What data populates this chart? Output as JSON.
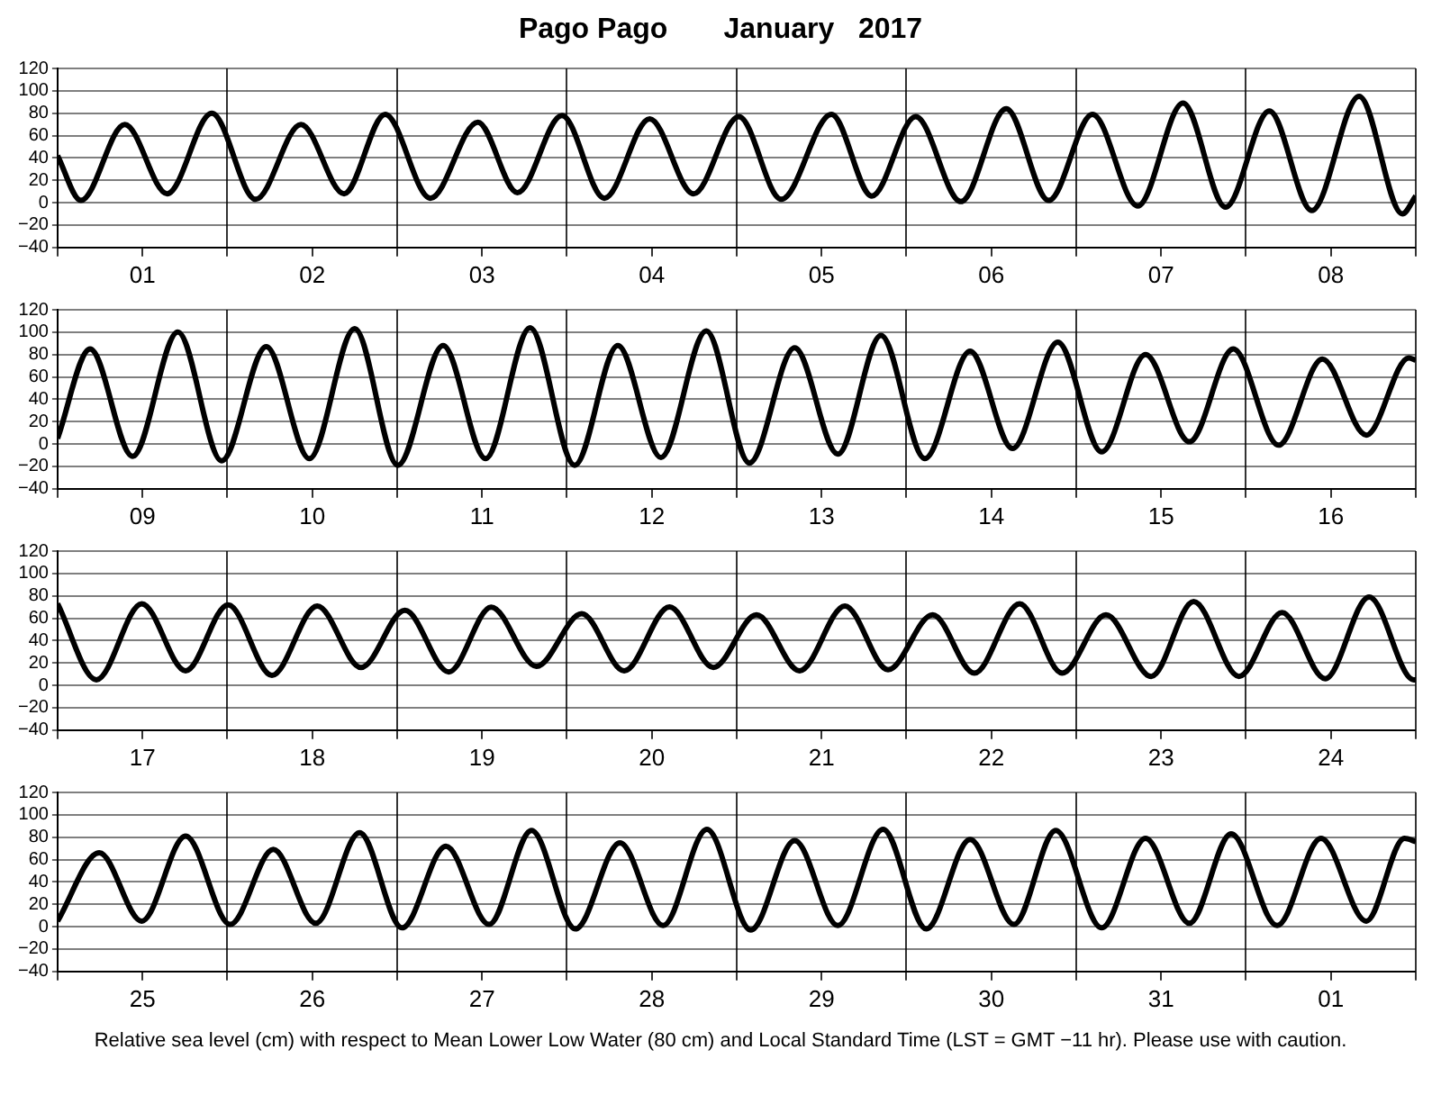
{
  "chart_data": [
    {
      "type": "line",
      "title": "Pago Pago       January   2017",
      "color": "#000000",
      "marker": "none",
      "grid": true,
      "xlim": [
        "2017-01-01T00:00",
        "2017-01-09T00:00"
      ],
      "ylim": [
        -40,
        120
      ],
      "yticks": [
        -40,
        -20,
        0,
        20,
        40,
        60,
        80,
        100,
        120
      ],
      "xticks": [
        {
          "value": "2017-01-01T00:00",
          "label": null
        },
        {
          "value": "2017-01-01T12:00",
          "label": "01"
        },
        {
          "value": "2017-01-02T00:00",
          "label": null
        },
        {
          "value": "2017-01-02T12:00",
          "label": "02"
        },
        {
          "value": "2017-01-03T00:00",
          "label": null
        },
        {
          "value": "2017-01-03T12:00",
          "label": "03"
        },
        {
          "value": "2017-01-04T00:00",
          "label": null
        },
        {
          "value": "2017-01-04T12:00",
          "label": "04"
        },
        {
          "value": "2017-01-05T00:00",
          "label": null
        },
        {
          "value": "2017-01-05T12:00",
          "label": "05"
        },
        {
          "value": "2017-01-06T00:00",
          "label": null
        },
        {
          "value": "2017-01-06T12:00",
          "label": "06"
        },
        {
          "value": "2017-01-07T00:00",
          "label": null
        },
        {
          "value": "2017-01-07T12:00",
          "label": "07"
        },
        {
          "value": "2017-01-08T00:00",
          "label": null
        },
        {
          "value": "2017-01-08T12:00",
          "label": "08"
        },
        {
          "value": "2017-01-09T00:00",
          "label": null
        }
      ],
      "x": [
        "2017-01-01T00:00",
        "2017-01-01T03:18",
        "2017-01-01T09:30",
        "2017-01-01T15:30",
        "2017-01-01T21:48",
        "2017-01-02T04:00",
        "2017-01-02T10:24",
        "2017-01-02T16:30",
        "2017-01-02T22:18",
        "2017-01-03T04:42",
        "2017-01-03T11:24",
        "2017-01-03T17:00",
        "2017-01-03T23:18",
        "2017-01-04T05:18",
        "2017-01-04T11:42",
        "2017-01-04T17:54",
        "2017-01-05T00:18",
        "2017-01-05T06:18",
        "2017-01-05T13:24",
        "2017-01-05T19:06",
        "2017-01-06T01:18",
        "2017-01-06T07:42",
        "2017-01-06T14:06",
        "2017-01-06T20:06",
        "2017-01-07T02:18",
        "2017-01-07T08:42",
        "2017-01-07T15:06",
        "2017-01-07T21:06",
        "2017-01-08T03:18",
        "2017-01-08T09:18",
        "2017-01-08T16:00",
        "2017-01-08T22:06",
        "2017-01-09T00:00"
      ],
      "values": [
        42,
        2,
        70,
        8,
        80,
        3,
        70,
        8,
        79,
        4,
        72,
        9,
        78,
        4,
        75,
        8,
        77,
        3,
        79,
        6,
        77,
        1,
        84,
        2,
        79,
        -3,
        89,
        -4,
        82,
        -7,
        95,
        -10,
        6
      ]
    },
    {
      "type": "line",
      "color": "#000000",
      "marker": "none",
      "grid": true,
      "xlim": [
        "2017-01-09T00:00",
        "2017-01-17T00:00"
      ],
      "ylim": [
        -40,
        120
      ],
      "yticks": [
        -40,
        -20,
        0,
        20,
        40,
        60,
        80,
        100,
        120
      ],
      "xticks": [
        {
          "value": "2017-01-09T00:00",
          "label": null
        },
        {
          "value": "2017-01-09T12:00",
          "label": "09"
        },
        {
          "value": "2017-01-10T00:00",
          "label": null
        },
        {
          "value": "2017-01-10T12:00",
          "label": "10"
        },
        {
          "value": "2017-01-11T00:00",
          "label": null
        },
        {
          "value": "2017-01-11T12:00",
          "label": "11"
        },
        {
          "value": "2017-01-12T00:00",
          "label": null
        },
        {
          "value": "2017-01-12T12:00",
          "label": "12"
        },
        {
          "value": "2017-01-13T00:00",
          "label": null
        },
        {
          "value": "2017-01-13T12:00",
          "label": "13"
        },
        {
          "value": "2017-01-14T00:00",
          "label": null
        },
        {
          "value": "2017-01-14T12:00",
          "label": "14"
        },
        {
          "value": "2017-01-15T00:00",
          "label": null
        },
        {
          "value": "2017-01-15T12:00",
          "label": "15"
        },
        {
          "value": "2017-01-16T00:00",
          "label": null
        },
        {
          "value": "2017-01-16T12:00",
          "label": "16"
        },
        {
          "value": "2017-01-17T00:00",
          "label": null
        }
      ],
      "x": [
        "2017-01-09T00:00",
        "2017-01-09T04:36",
        "2017-01-09T10:36",
        "2017-01-09T17:00",
        "2017-01-09T23:12",
        "2017-01-10T05:30",
        "2017-01-10T11:36",
        "2017-01-10T18:00",
        "2017-01-11T00:06",
        "2017-01-11T06:30",
        "2017-01-11T12:30",
        "2017-01-11T18:48",
        "2017-01-12T01:06",
        "2017-01-12T07:12",
        "2017-01-12T13:18",
        "2017-01-12T19:42",
        "2017-01-13T01:48",
        "2017-01-13T08:12",
        "2017-01-13T14:18",
        "2017-01-13T20:24",
        "2017-01-14T02:36",
        "2017-01-14T09:00",
        "2017-01-14T15:00",
        "2017-01-14T21:24",
        "2017-01-15T03:36",
        "2017-01-15T09:48",
        "2017-01-15T16:00",
        "2017-01-15T22:12",
        "2017-01-16T04:36",
        "2017-01-16T10:48",
        "2017-01-16T17:00",
        "2017-01-16T23:00",
        "2017-01-17T00:00"
      ],
      "values": [
        5,
        85,
        -11,
        100,
        -15,
        87,
        -13,
        103,
        -19,
        88,
        -13,
        104,
        -19,
        88,
        -12,
        101,
        -17,
        86,
        -9,
        97,
        -13,
        83,
        -4,
        91,
        -7,
        80,
        2,
        85,
        -1,
        76,
        8,
        77,
        75
      ]
    },
    {
      "type": "line",
      "color": "#000000",
      "marker": "none",
      "grid": true,
      "xlim": [
        "2017-01-17T00:00",
        "2017-01-25T00:00"
      ],
      "ylim": [
        -40,
        120
      ],
      "yticks": [
        -40,
        -20,
        0,
        20,
        40,
        60,
        80,
        100,
        120
      ],
      "xticks": [
        {
          "value": "2017-01-17T00:00",
          "label": null
        },
        {
          "value": "2017-01-17T12:00",
          "label": "17"
        },
        {
          "value": "2017-01-18T00:00",
          "label": null
        },
        {
          "value": "2017-01-18T12:00",
          "label": "18"
        },
        {
          "value": "2017-01-19T00:00",
          "label": null
        },
        {
          "value": "2017-01-19T12:00",
          "label": "19"
        },
        {
          "value": "2017-01-20T00:00",
          "label": null
        },
        {
          "value": "2017-01-20T12:00",
          "label": "20"
        },
        {
          "value": "2017-01-21T00:00",
          "label": null
        },
        {
          "value": "2017-01-21T12:00",
          "label": "21"
        },
        {
          "value": "2017-01-22T00:00",
          "label": null
        },
        {
          "value": "2017-01-22T12:00",
          "label": "22"
        },
        {
          "value": "2017-01-23T00:00",
          "label": null
        },
        {
          "value": "2017-01-23T12:00",
          "label": "23"
        },
        {
          "value": "2017-01-24T00:00",
          "label": null
        },
        {
          "value": "2017-01-24T12:00",
          "label": "24"
        },
        {
          "value": "2017-01-25T00:00",
          "label": null
        }
      ],
      "x": [
        "2017-01-17T00:00",
        "2017-01-17T05:30",
        "2017-01-17T11:54",
        "2017-01-17T18:06",
        "2017-01-18T00:06",
        "2017-01-18T06:18",
        "2017-01-18T12:42",
        "2017-01-18T18:54",
        "2017-01-19T01:06",
        "2017-01-19T07:18",
        "2017-01-19T13:18",
        "2017-01-19T19:42",
        "2017-01-20T02:06",
        "2017-01-20T08:06",
        "2017-01-20T14:30",
        "2017-01-20T20:42",
        "2017-01-21T02:48",
        "2017-01-21T08:54",
        "2017-01-21T15:18",
        "2017-01-21T21:24",
        "2017-01-22T03:42",
        "2017-01-22T09:36",
        "2017-01-22T16:00",
        "2017-01-22T22:00",
        "2017-01-23T04:12",
        "2017-01-23T10:36",
        "2017-01-23T16:36",
        "2017-01-23T23:00",
        "2017-01-24T05:06",
        "2017-01-24T11:12",
        "2017-01-24T17:24",
        "2017-01-24T23:42",
        "2017-01-25T00:00"
      ],
      "values": [
        73,
        5,
        73,
        13,
        72,
        9,
        71,
        16,
        67,
        12,
        70,
        17,
        64,
        13,
        70,
        16,
        63,
        13,
        71,
        14,
        63,
        11,
        73,
        11,
        63,
        8,
        75,
        8,
        65,
        6,
        79,
        5,
        5
      ]
    },
    {
      "type": "line",
      "color": "#000000",
      "marker": "none",
      "grid": true,
      "xlim": [
        "2017-01-25T00:00",
        "2017-02-02T00:00"
      ],
      "ylim": [
        -40,
        120
      ],
      "yticks": [
        -40,
        -20,
        0,
        20,
        40,
        60,
        80,
        100,
        120
      ],
      "xticks": [
        {
          "value": "2017-01-25T00:00",
          "label": null
        },
        {
          "value": "2017-01-25T12:00",
          "label": "25"
        },
        {
          "value": "2017-01-26T00:00",
          "label": null
        },
        {
          "value": "2017-01-26T12:00",
          "label": "26"
        },
        {
          "value": "2017-01-27T00:00",
          "label": null
        },
        {
          "value": "2017-01-27T12:00",
          "label": "27"
        },
        {
          "value": "2017-01-28T00:00",
          "label": null
        },
        {
          "value": "2017-01-28T12:00",
          "label": "28"
        },
        {
          "value": "2017-01-29T00:00",
          "label": null
        },
        {
          "value": "2017-01-29T12:00",
          "label": "29"
        },
        {
          "value": "2017-01-30T00:00",
          "label": null
        },
        {
          "value": "2017-01-30T12:00",
          "label": "30"
        },
        {
          "value": "2017-01-31T00:00",
          "label": null
        },
        {
          "value": "2017-01-31T12:00",
          "label": "31"
        },
        {
          "value": "2017-02-01T00:00",
          "label": null
        },
        {
          "value": "2017-02-01T12:00",
          "label": "01"
        },
        {
          "value": "2017-02-02T00:00",
          "label": null
        }
      ],
      "x": [
        "2017-01-25T00:00",
        "2017-01-25T05:54",
        "2017-01-25T11:54",
        "2017-01-25T18:06",
        "2017-01-26T00:24",
        "2017-01-26T06:30",
        "2017-01-26T12:30",
        "2017-01-26T18:42",
        "2017-01-27T00:42",
        "2017-01-27T06:54",
        "2017-01-27T13:00",
        "2017-01-27T19:00",
        "2017-01-28T01:12",
        "2017-01-28T07:30",
        "2017-01-28T13:36",
        "2017-01-28T19:48",
        "2017-01-29T02:00",
        "2017-01-29T08:12",
        "2017-01-29T14:18",
        "2017-01-29T20:42",
        "2017-01-30T02:48",
        "2017-01-30T09:00",
        "2017-01-30T15:12",
        "2017-01-30T21:06",
        "2017-01-31T03:36",
        "2017-01-31T09:48",
        "2017-01-31T16:00",
        "2017-01-31T21:54",
        "2017-02-01T04:24",
        "2017-02-01T10:36",
        "2017-02-01T17:00",
        "2017-02-01T22:24",
        "2017-02-02T00:00"
      ],
      "values": [
        5,
        66,
        5,
        81,
        2,
        69,
        3,
        84,
        -1,
        72,
        2,
        86,
        -2,
        75,
        1,
        87,
        -3,
        77,
        1,
        87,
        -2,
        78,
        2,
        86,
        -1,
        79,
        3,
        83,
        1,
        79,
        5,
        79,
        76
      ],
      "annotations": [
        "Relative sea level (cm) with respect to Mean Lower Low Water (80 cm) and Local Standard Time (LST = GMT −11 hr). Please use with caution."
      ]
    }
  ]
}
